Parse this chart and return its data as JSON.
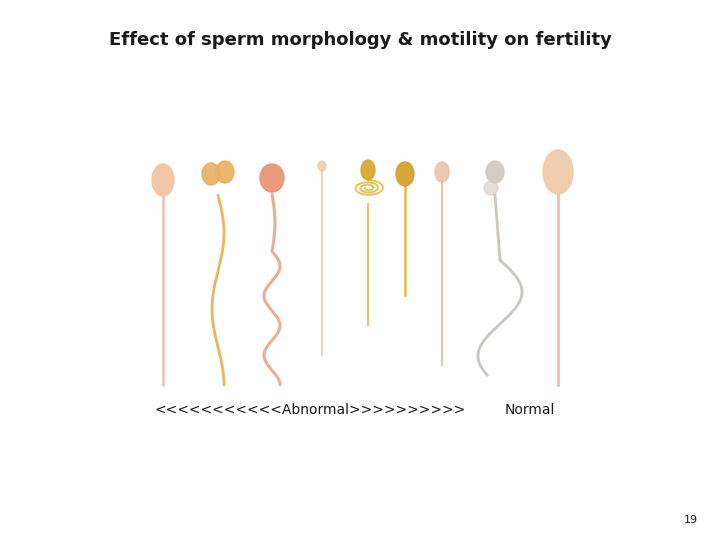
{
  "title": "Effect of sperm morphology & motility on fertility",
  "title_fontsize": 13,
  "title_fontweight": "bold",
  "label_abnormal": "<<<<<<<<<<<Abnormal>>>>>>>>>>",
  "label_normal": "Normal",
  "label_fontsize": 10,
  "page_number": "19",
  "page_number_fontsize": 8,
  "background_color": "#ffffff",
  "text_color": "#1a1a1a",
  "sperm_colors": {
    "peach_head": "#f0c8a8",
    "peach_tail": "#e8b898",
    "peach_light": "#f5d8c0",
    "double_head": "#e8b060",
    "double_tail": "#e8a840",
    "salmon_head": "#e89070",
    "salmon_tail": "#e8a080",
    "pin_head": "#f0c8a8",
    "pin_tail": "#e8c0a8",
    "yellow_head": "#d8a830",
    "yellow_tail": "#e0b840",
    "yellow2_head": "#d8a030",
    "yellow2_tail": "#e0b030",
    "small_head": "#e8c0a8",
    "small_tail": "#e0b8a0",
    "gray_head": "#d0c8c0",
    "gray_tail": "#c0b8b0",
    "normal_head": "#f0c8a8",
    "normal_tail": "#e8b898"
  }
}
